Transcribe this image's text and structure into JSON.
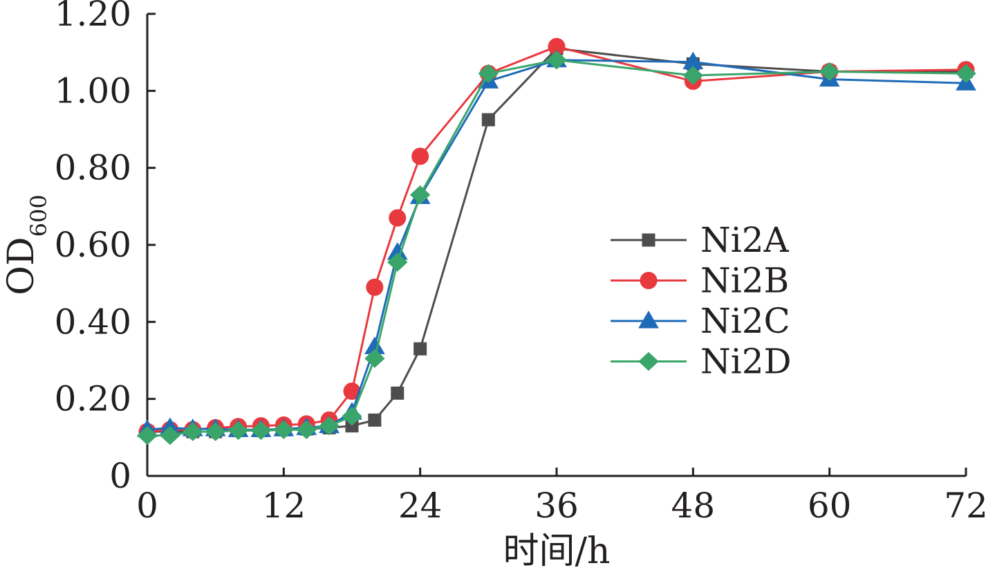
{
  "chart_data": {
    "type": "line",
    "xlabel": "时间/h",
    "ylabel": "OD",
    "ylabel_subscript": "600",
    "xlim": [
      0,
      72
    ],
    "ylim": [
      0,
      1.2
    ],
    "x_ticks": [
      "0",
      "12",
      "24",
      "36",
      "48",
      "60",
      "72"
    ],
    "y_ticks": [
      "0",
      "0.20",
      "0.40",
      "0.60",
      "0.80",
      "1.00",
      "1.20"
    ],
    "x_tick_values": [
      0,
      12,
      24,
      36,
      48,
      60,
      72
    ],
    "y_tick_values": [
      0,
      0.2,
      0.4,
      0.6,
      0.8,
      1.0,
      1.2
    ],
    "grid": false,
    "legend_position": "right-center",
    "x": [
      0,
      2,
      4,
      6,
      8,
      10,
      12,
      14,
      16,
      18,
      20,
      22,
      24,
      30,
      36,
      48,
      60,
      72
    ],
    "series": [
      {
        "name": "Ni2A",
        "color": "#4d4d4d",
        "marker": "square",
        "values": [
          0.115,
          0.115,
          0.115,
          0.115,
          0.118,
          0.118,
          0.12,
          0.122,
          0.125,
          0.13,
          0.145,
          0.215,
          0.33,
          0.925,
          1.11,
          1.07,
          1.05,
          1.05
        ]
      },
      {
        "name": "Ni2B",
        "color": "#e8393f",
        "marker": "circle",
        "values": [
          0.115,
          0.12,
          0.12,
          0.125,
          0.128,
          0.13,
          0.132,
          0.135,
          0.145,
          0.22,
          0.49,
          0.67,
          0.83,
          1.045,
          1.115,
          1.025,
          1.05,
          1.055
        ]
      },
      {
        "name": "Ni2C",
        "color": "#1e6bb8",
        "marker": "triangle",
        "values": [
          0.12,
          0.125,
          0.122,
          0.122,
          0.12,
          0.12,
          0.122,
          0.125,
          0.13,
          0.165,
          0.335,
          0.58,
          0.725,
          1.025,
          1.08,
          1.075,
          1.03,
          1.02
        ]
      },
      {
        "name": "Ni2D",
        "color": "#3aa56a",
        "marker": "diamond",
        "values": [
          0.105,
          0.105,
          0.115,
          0.115,
          0.118,
          0.118,
          0.12,
          0.12,
          0.13,
          0.155,
          0.305,
          0.555,
          0.73,
          1.045,
          1.08,
          1.04,
          1.05,
          1.045
        ]
      }
    ]
  }
}
